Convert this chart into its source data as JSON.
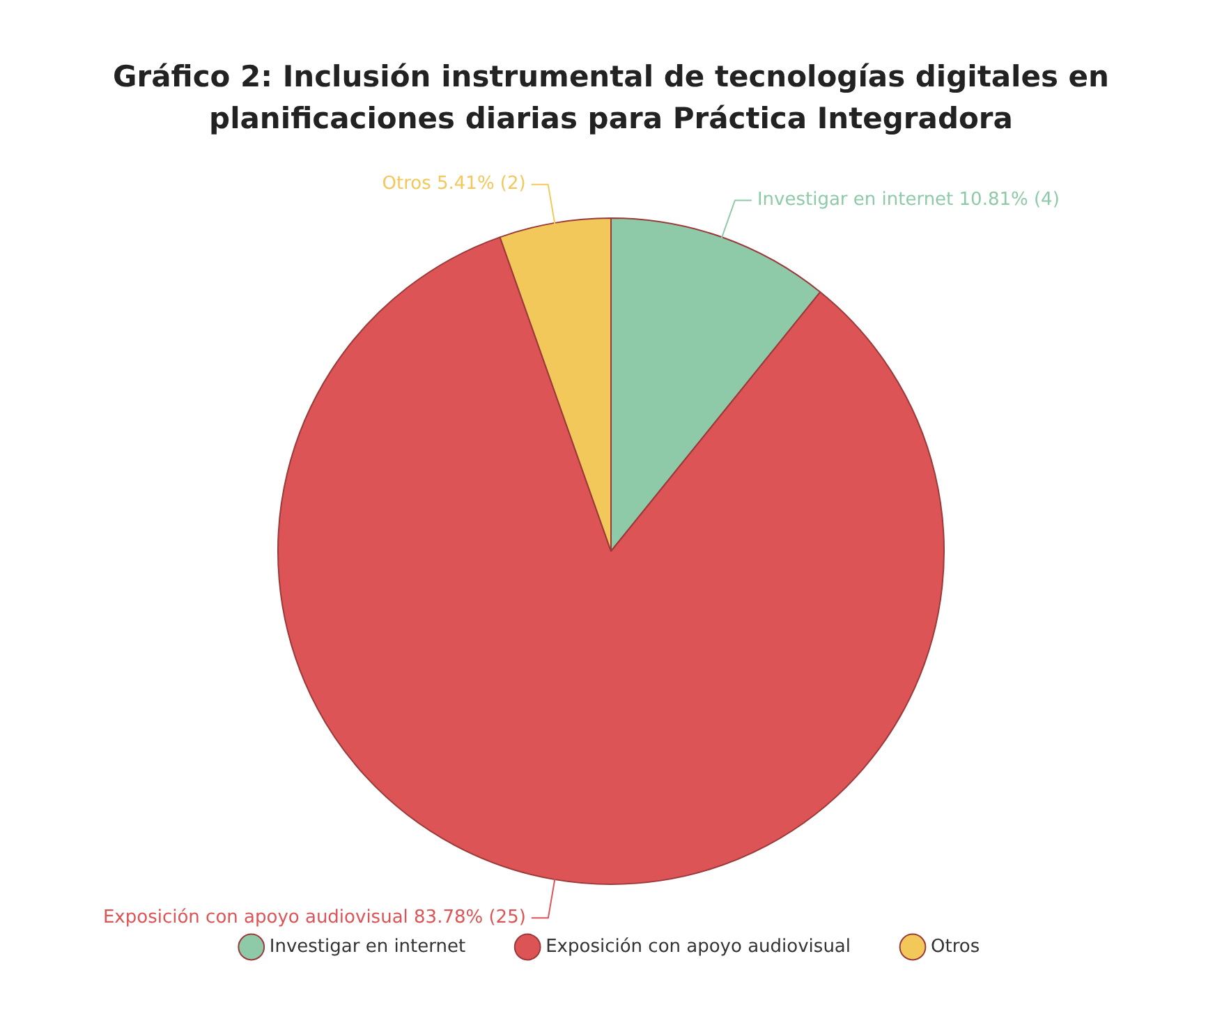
{
  "chart_data": {
    "type": "pie",
    "title": "Gráfico 2: Inclusión instrumental de tecnologías digitales en planificaciones diarias para Práctica Integradora",
    "categories": [
      "Investigar en internet",
      "Exposición con apoyo audiovisual",
      "Otros"
    ],
    "values": [
      10.81,
      83.78,
      5.41
    ],
    "colors": [
      "#8fcaa8",
      "#dc5456",
      "#f2c85b"
    ],
    "value_labels": [
      "10.81% (4)",
      "83.78% (25)",
      "5.41% (2)"
    ],
    "legend": "bottom"
  }
}
